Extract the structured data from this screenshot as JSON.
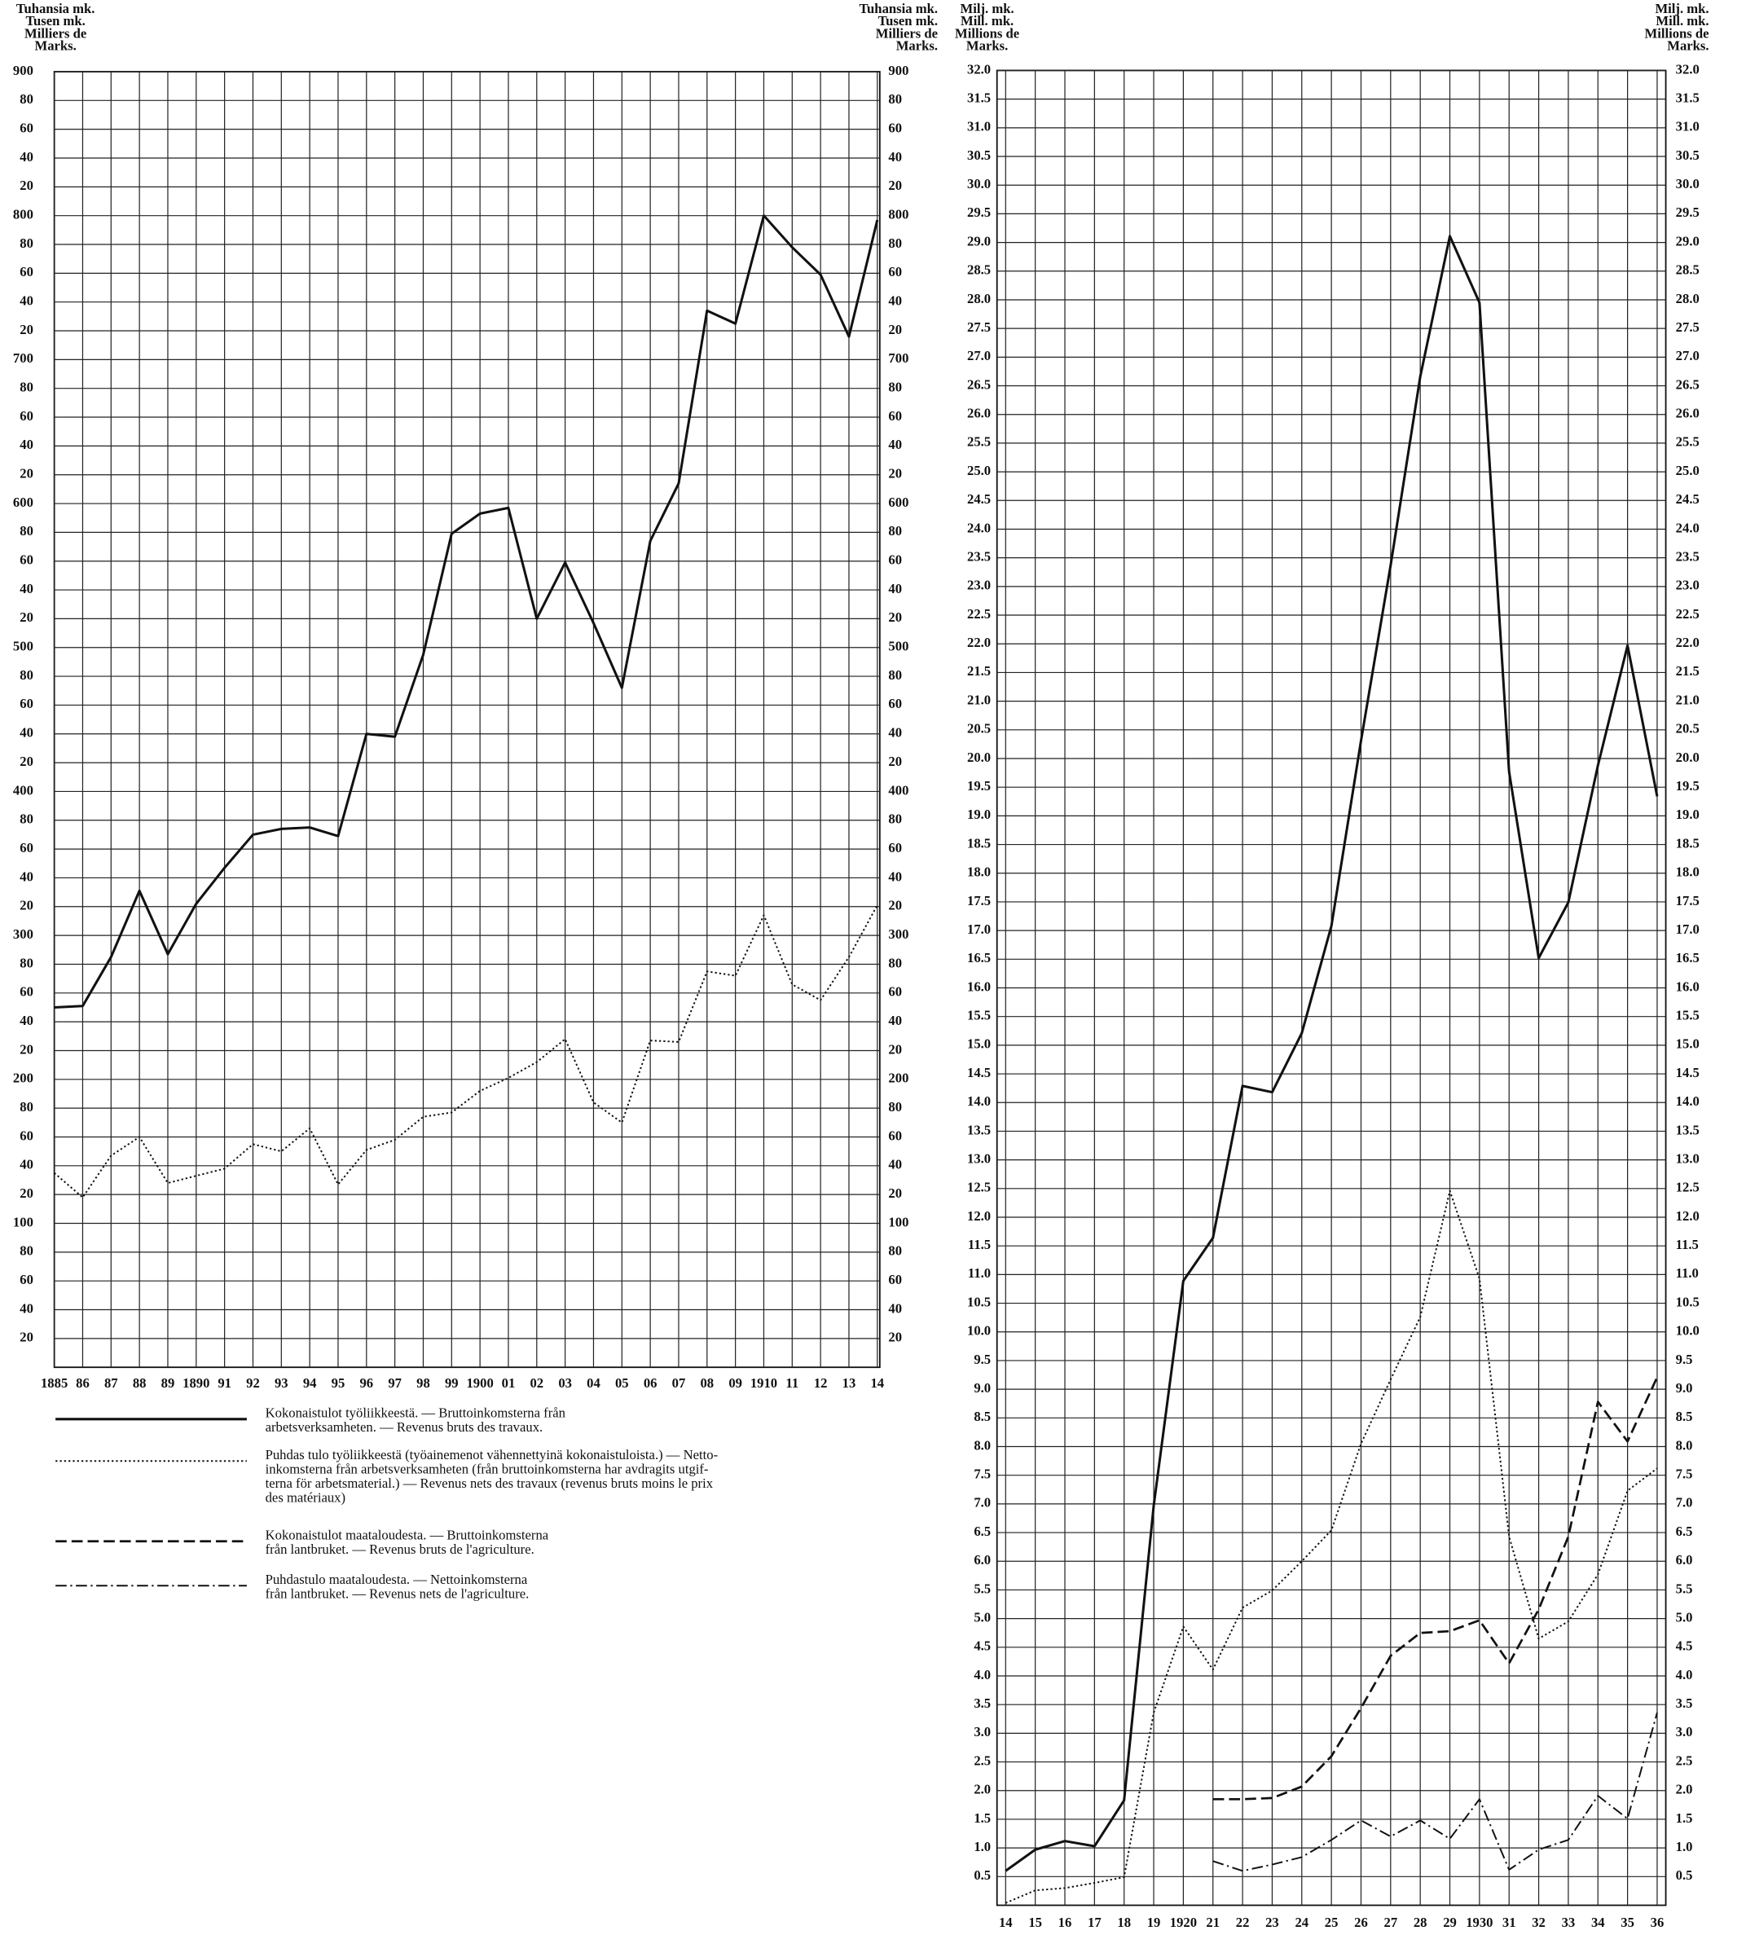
{
  "chart_data": [
    {
      "type": "line",
      "ylabel": [
        "Tuhansia mk.",
        "Tusen mk.",
        "Milliers de",
        "Marks."
      ],
      "categories": [
        "1885",
        "86",
        "87",
        "88",
        "89",
        "1890",
        "91",
        "92",
        "93",
        "94",
        "95",
        "96",
        "97",
        "98",
        "99",
        "1900",
        "01",
        "02",
        "03",
        "04",
        "05",
        "06",
        "07",
        "08",
        "09",
        "1910",
        "11",
        "12",
        "13",
        "14"
      ],
      "ylim": [
        0,
        900
      ],
      "yticks": [
        20,
        40,
        60,
        80,
        100,
        {
          "value": 120,
          "label": "20"
        },
        {
          "value": 140,
          "label": "40"
        },
        {
          "value": 160,
          "label": "60"
        },
        {
          "value": 180,
          "label": "80"
        },
        200,
        {
          "value": 220,
          "label": "20"
        },
        {
          "value": 240,
          "label": "40"
        },
        {
          "value": 260,
          "label": "60"
        },
        {
          "value": 280,
          "label": "80"
        },
        300,
        {
          "value": 320,
          "label": "20"
        },
        {
          "value": 340,
          "label": "40"
        },
        {
          "value": 360,
          "label": "60"
        },
        {
          "value": 380,
          "label": "80"
        },
        400,
        {
          "value": 420,
          "label": "20"
        },
        {
          "value": 440,
          "label": "40"
        },
        {
          "value": 460,
          "label": "60"
        },
        {
          "value": 480,
          "label": "80"
        },
        500,
        {
          "value": 520,
          "label": "20"
        },
        {
          "value": 540,
          "label": "40"
        },
        {
          "value": 560,
          "label": "60"
        },
        {
          "value": 580,
          "label": "80"
        },
        600,
        {
          "value": 620,
          "label": "20"
        },
        {
          "value": 640,
          "label": "40"
        },
        {
          "value": 660,
          "label": "60"
        },
        {
          "value": 680,
          "label": "80"
        },
        700,
        {
          "value": 720,
          "label": "20"
        },
        {
          "value": 740,
          "label": "40"
        },
        {
          "value": 760,
          "label": "60"
        },
        {
          "value": 780,
          "label": "80"
        },
        800,
        {
          "value": 820,
          "label": "20"
        },
        {
          "value": 840,
          "label": "40"
        },
        {
          "value": 860,
          "label": "60"
        },
        {
          "value": 880,
          "label": "80"
        },
        900
      ],
      "grid": true,
      "series": [
        {
          "style": "solid",
          "color": "#111",
          "values": [
            250,
            251,
            285,
            331,
            287,
            322,
            347,
            370,
            374,
            375,
            369,
            440,
            438,
            495,
            579,
            593,
            597,
            520,
            559,
            517,
            472,
            574,
            614,
            734,
            725,
            800,
            778,
            759,
            716,
            797
          ]
        },
        {
          "style": "dotted",
          "color": "#111",
          "values": [
            135,
            118,
            147,
            160,
            128,
            133,
            138,
            155,
            150,
            166,
            127,
            151,
            158,
            174,
            177,
            192,
            201,
            212,
            228,
            184,
            170,
            227,
            226,
            275,
            272,
            314,
            266,
            255,
            285,
            321
          ]
        }
      ]
    },
    {
      "type": "line",
      "ylabel": [
        "Milj. mk.",
        "Mill. mk.",
        "Millions de",
        "Marks."
      ],
      "categories": [
        "14",
        "15",
        "16",
        "17",
        "18",
        "19",
        "1920",
        "21",
        "22",
        "23",
        "24",
        "25",
        "26",
        "27",
        "28",
        "29",
        "1930",
        "31",
        "32",
        "33",
        "34",
        "35",
        "36"
      ],
      "ylim": [
        0,
        32
      ],
      "yticks": [
        0.5,
        {
          "value": 1,
          "label": "1.0"
        },
        1.5,
        {
          "value": 2,
          "label": "2.0"
        },
        2.5,
        {
          "value": 3,
          "label": "3.0"
        },
        3.5,
        {
          "value": 4,
          "label": "4.0"
        },
        4.5,
        {
          "value": 5,
          "label": "5.0"
        },
        5.5,
        {
          "value": 6,
          "label": "6.0"
        },
        6.5,
        {
          "value": 7,
          "label": "7.0"
        },
        7.5,
        {
          "value": 8,
          "label": "8.0"
        },
        8.5,
        {
          "value": 9,
          "label": "9.0"
        },
        9.5,
        {
          "value": 10,
          "label": "10.0"
        },
        10.5,
        {
          "value": 11,
          "label": "11.0"
        },
        11.5,
        {
          "value": 12,
          "label": "12.0"
        },
        12.5,
        {
          "value": 13,
          "label": "13.0"
        },
        13.5,
        {
          "value": 14,
          "label": "14.0"
        },
        14.5,
        {
          "value": 15,
          "label": "15.0"
        },
        15.5,
        {
          "value": 16,
          "label": "16.0"
        },
        16.5,
        {
          "value": 17,
          "label": "17.0"
        },
        17.5,
        {
          "value": 18,
          "label": "18.0"
        },
        18.5,
        {
          "value": 19,
          "label": "19.0"
        },
        19.5,
        {
          "value": 20,
          "label": "20.0"
        },
        20.5,
        {
          "value": 21,
          "label": "21.0"
        },
        21.5,
        {
          "value": 22,
          "label": "22.0"
        },
        22.5,
        {
          "value": 23,
          "label": "23.0"
        },
        23.5,
        {
          "value": 24,
          "label": "24.0"
        },
        24.5,
        {
          "value": 25,
          "label": "25.0"
        },
        25.5,
        {
          "value": 26,
          "label": "26.0"
        },
        26.5,
        {
          "value": 27,
          "label": "27.0"
        },
        27.5,
        {
          "value": 28,
          "label": "28.0"
        },
        28.5,
        {
          "value": 29,
          "label": "29.0"
        },
        29.5,
        {
          "value": 30,
          "label": "30.0"
        },
        30.5,
        {
          "value": 31,
          "label": "31.0"
        },
        31.5,
        {
          "value": 32,
          "label": "32.0"
        }
      ],
      "grid": true,
      "series": [
        {
          "style": "solid",
          "color": "#111",
          "values": [
            0.6,
            0.97,
            1.12,
            1.03,
            1.83,
            6.97,
            10.89,
            11.64,
            14.29,
            14.18,
            15.21,
            17.08,
            20.31,
            23.37,
            26.66,
            29.11,
            27.95,
            19.77,
            16.52,
            17.49,
            19.88,
            21.97,
            19.34
          ]
        },
        {
          "style": "dotted",
          "color": "#111",
          "values": [
            0.04,
            0.26,
            0.3,
            0.39,
            0.49,
            3.36,
            4.86,
            4.11,
            5.19,
            5.49,
            6.0,
            6.54,
            8.05,
            9.17,
            10.26,
            12.46,
            10.93,
            6.43,
            4.65,
            4.95,
            5.77,
            7.23,
            7.62
          ]
        },
        {
          "style": "dashed",
          "color": "#111",
          "values": [
            null,
            null,
            null,
            null,
            null,
            null,
            null,
            1.85,
            1.85,
            1.87,
            2.07,
            2.6,
            3.44,
            4.35,
            4.75,
            4.78,
            4.97,
            4.22,
            5.16,
            6.43,
            8.78,
            8.09,
            9.21
          ]
        },
        {
          "style": "dashdot",
          "color": "#111",
          "values": [
            null,
            null,
            null,
            null,
            null,
            null,
            null,
            0.77,
            0.6,
            0.71,
            0.84,
            1.14,
            1.48,
            1.2,
            1.48,
            1.16,
            1.85,
            0.62,
            0.97,
            1.14,
            1.91,
            1.51,
            3.36
          ]
        }
      ]
    }
  ],
  "legend": [
    {
      "style": "solid",
      "lines": [
        "Kokonaistulot työliikkeestä. — Bruttoinkomsterna från",
        "arbetsverksamheten. — Revenus bruts des travaux."
      ]
    },
    {
      "style": "dotted",
      "lines": [
        "Puhdas tulo työliikkeestä (työainemenot vähennettyinä kokonaistuloista.) — Netto-",
        "inkomsterna från arbetsverksamheten (från bruttoinkomsterna har avdragits utgif-",
        "terna för arbetsmaterial.) — Revenus nets des travaux (revenus bruts moins le prix",
        "des matériaux)"
      ]
    },
    {
      "style": "dashed",
      "lines": [
        "Kokonaistulot maataloudesta. — Bruttoinkomsterna",
        "från lantbruket. — Revenus bruts de l'agriculture."
      ]
    },
    {
      "style": "dashdot",
      "lines": [
        "Puhdastulo maataloudesta. — Nettoinkomsterna",
        "från lantbruket. — Revenus nets de l'agriculture."
      ]
    }
  ]
}
